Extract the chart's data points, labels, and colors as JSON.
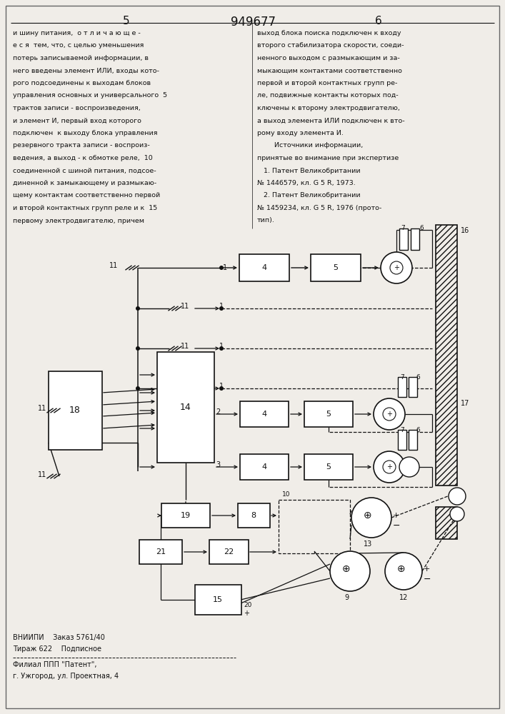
{
  "page_width": 7.07,
  "page_height": 10.0,
  "bg_color": "#f0ede8",
  "text_color": "#111111",
  "line_color": "#111111",
  "header": {
    "left_num": "5",
    "center_num": "949677",
    "right_num": "6"
  },
  "left_column_text": [
    "и шину питания,  о т л и ч а ю щ е -",
    "е с я  тем, что, с целью уменьшения",
    "потерь записываемой информации, в",
    "него введены элемент ИЛИ, входы кото-",
    "рого подсоединены к выходам блоков",
    "управления основных и универсального  5",
    "трактов записи - воспроизведения,",
    "и элемент И, первый вход которого",
    "подключен  к выходу блока управления",
    "резервного тракта записи - воспроиз-",
    "ведения, а выход - к обмотке реле,  10",
    "соединенной с шиной питания, подсое-",
    "диненной к замыкающему и размыкаю-",
    "щему контактам соответственно первой",
    "и второй контактных групп реле и к  15",
    "первому электродвигателю, причем"
  ],
  "right_column_text": [
    "выход блока поиска подключен к входу",
    "второго стабилизатора скорости, соеди-",
    "ненного выходом с размыкающим и за-",
    "мыкающим контактами соответственно",
    "первой и второй контактных групп ре-",
    "ле, подвижные контакты которых под-",
    "ключены к второму электродвигателю,",
    "а выход элемента ИЛИ подключен к вто-",
    "рому входу элемента И.",
    "        Источники информации,",
    "принятые во внимание при экспертизе",
    "   1. Патент Великобритании",
    "№ 1446579, кл. G 5 R, 1973.",
    "   2. Патент Великобритании",
    "№ 1459234, кл. G 5 R, 1976 (прото-",
    "тип)."
  ],
  "footer_text": [
    "ВНИИПИ    Заказ 5761/40",
    "Тираж 622    Подписное",
    "Филиал ППП \"Патент\",",
    "г. Ужгород, ул. Проектная, 4"
  ]
}
